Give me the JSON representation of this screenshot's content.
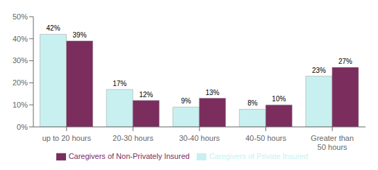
{
  "chart_data": {
    "type": "bar",
    "categories": [
      "up to 20 hours",
      "20-30 hours",
      "30-40 hours",
      "40-50 hours",
      "Greater than\n50 hours"
    ],
    "series": [
      {
        "name": "Caregivers of Private Insured",
        "color": "#c8f0f0",
        "values": [
          42,
          17,
          9,
          8,
          23
        ],
        "value_labels": [
          "42%",
          "17%",
          "9%",
          "8%",
          "23%"
        ]
      },
      {
        "name": "Caregivers of Non-Privately Insured",
        "color": "#7b2d5e",
        "values": [
          39,
          12,
          13,
          10,
          27
        ],
        "value_labels": [
          "39%",
          "12%",
          "13%",
          "10%",
          "27%"
        ]
      }
    ],
    "ylim": [
      0,
      50
    ],
    "yticks": [
      {
        "value": 0,
        "label": "0%"
      },
      {
        "value": 10,
        "label": "10%"
      },
      {
        "value": 20,
        "label": "20%"
      },
      {
        "value": 30,
        "label": "30%"
      },
      {
        "value": 40,
        "label": "40%"
      },
      {
        "value": 50,
        "label": "50%"
      }
    ],
    "grid": false,
    "legend": "bottom",
    "data_labels": true
  }
}
